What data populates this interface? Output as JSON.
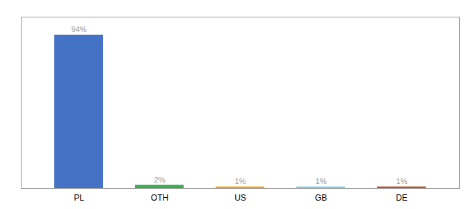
{
  "chart_data": {
    "type": "bar",
    "categories": [
      "PL",
      "OTH",
      "US",
      "GB",
      "DE"
    ],
    "values": [
      94,
      2,
      1,
      1,
      1
    ],
    "value_labels": [
      "94%",
      "2%",
      "1%",
      "1%",
      "1%"
    ],
    "colors": [
      "#4472c4",
      "#3daa4c",
      "#ffa500",
      "#87ceeb",
      "#c0522a"
    ],
    "data_labels": true,
    "ylim": [
      0,
      105
    ],
    "tick_labels": "x",
    "grid": false
  }
}
